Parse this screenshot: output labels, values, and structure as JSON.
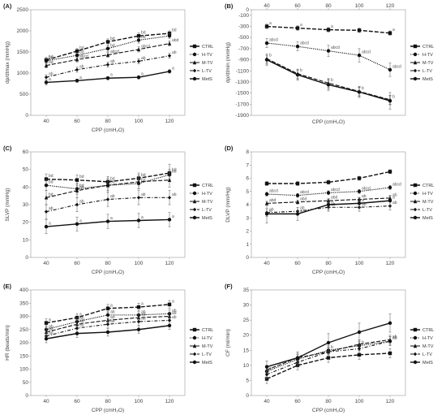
{
  "chart_data": [
    {
      "panel": "(A)",
      "type": "line",
      "ylabel": "dp/dtmax (mmHg)",
      "xlabel": "CPP (cmH₂O)",
      "x": [
        40,
        60,
        80,
        100,
        120
      ],
      "ylim": [
        0,
        2500
      ],
      "yticks": [
        0,
        500,
        1000,
        1500,
        2000,
        2500
      ],
      "series": [
        {
          "name": "CTRL",
          "values": [
            1310,
            1520,
            1740,
            1880,
            1940
          ],
          "err": [
            60,
            60,
            70,
            70,
            60
          ],
          "labels": [
            "bd",
            "bd",
            "bd",
            "bd",
            "bd"
          ]
        },
        {
          "name": "H-TV",
          "values": [
            1290,
            1420,
            1580,
            1780,
            1880
          ],
          "err": [
            60,
            60,
            70,
            70,
            60
          ],
          "labels": [
            "bd",
            "bd",
            "bd",
            "bd",
            ""
          ]
        },
        {
          "name": "M-TV",
          "values": [
            1180,
            1320,
            1430,
            1560,
            1700
          ],
          "err": [
            60,
            60,
            60,
            60,
            60
          ],
          "labels": [
            "bd",
            "abcd",
            "abcd",
            "abcd",
            "abd"
          ]
        },
        {
          "name": "L-TV",
          "values": [
            900,
            1080,
            1200,
            1280,
            1410
          ],
          "err": [
            60,
            60,
            60,
            60,
            60
          ],
          "labels": [
            "ab",
            "ab",
            "ab",
            "ab",
            "ab"
          ]
        },
        {
          "name": "MetS",
          "values": [
            780,
            820,
            880,
            900,
            1040
          ],
          "err": [
            60,
            40,
            40,
            40,
            40
          ],
          "labels": [
            "a",
            "a",
            "a",
            "a",
            "a"
          ]
        }
      ],
      "legend": {
        "entries": [
          "CTRL",
          "H-TV",
          "M-TV",
          "L-TV",
          "MetS"
        ],
        "placement": "right"
      }
    },
    {
      "panel": "(B)",
      "type": "line",
      "ylabel": "dp/dtmin (mmHg)",
      "xlabel": "CPP (cmH₂O)",
      "x": [
        40,
        60,
        80,
        100,
        120
      ],
      "ylim": [
        -1900,
        0
      ],
      "yticks": [
        0,
        -100,
        -300,
        -500,
        -700,
        -900,
        -1100,
        -1300,
        -1500,
        -1700,
        -1900
      ],
      "series": [
        {
          "name": "CTRL",
          "values": [
            -300,
            -330,
            -360,
            -370,
            -420
          ],
          "err": [
            40,
            40,
            40,
            40,
            40
          ],
          "labels": [
            "a",
            "a",
            "a",
            "",
            "a"
          ]
        },
        {
          "name": "H-TV",
          "values": [
            -600,
            -660,
            -740,
            -820,
            -1080
          ],
          "err": [
            80,
            80,
            100,
            120,
            120
          ],
          "labels": [
            "abcd",
            "abcd",
            "abcd",
            "abcd",
            "abcd"
          ]
        },
        {
          "name": "M-TV",
          "values": [
            -880,
            -1150,
            -1320,
            -1470,
            -1620
          ],
          "err": [
            80,
            80,
            80,
            80,
            80
          ],
          "labels": [
            "b",
            "b",
            "b",
            "b",
            "b"
          ]
        },
        {
          "name": "L-TV",
          "values": [
            -900,
            -1170,
            -1350,
            -1480,
            -1630
          ],
          "err": [
            80,
            80,
            80,
            80,
            80
          ],
          "labels": [
            "",
            "",
            "",
            "",
            ""
          ]
        },
        {
          "name": "MetS",
          "values": [
            -900,
            -1170,
            -1350,
            -1480,
            -1640
          ],
          "err": [
            100,
            100,
            100,
            100,
            150
          ],
          "labels": [
            "",
            "",
            "",
            "",
            ""
          ]
        }
      ],
      "legend": {
        "entries": [
          "CTRL",
          "H-TV",
          "M-TV",
          "L-TV",
          "MetS"
        ],
        "placement": "right"
      }
    },
    {
      "panel": "(C)",
      "type": "line",
      "ylabel": "SLVP (mmHg)",
      "xlabel": "CPP (cmH₂O)",
      "x": [
        40,
        60,
        80,
        100,
        120
      ],
      "ylim": [
        0,
        60
      ],
      "yticks": [
        0,
        10,
        20,
        30,
        40,
        50,
        60
      ],
      "series": [
        {
          "name": "CTRL",
          "values": [
            44.5,
            44,
            43,
            45,
            48
          ],
          "err": [
            3,
            3,
            3,
            3,
            5
          ],
          "labels": [
            "bd",
            "bd",
            "bd",
            "bd",
            "bd"
          ]
        },
        {
          "name": "H-TV",
          "values": [
            41,
            39,
            41,
            42,
            47
          ],
          "err": [
            3,
            3,
            3,
            3,
            3
          ],
          "labels": [
            "bd",
            "bd",
            "bd",
            "bd",
            "bd"
          ]
        },
        {
          "name": "M-TV",
          "values": [
            34,
            38,
            41,
            43,
            44
          ],
          "err": [
            4,
            4,
            4,
            4,
            4
          ],
          "labels": [
            "bd",
            "bd",
            "",
            "",
            ""
          ]
        },
        {
          "name": "L-TV",
          "values": [
            26,
            30,
            33,
            34,
            34
          ],
          "err": [
            4,
            4,
            4,
            4,
            4
          ],
          "labels": [
            "ab",
            "ab",
            "ab",
            "ab",
            "ab"
          ]
        },
        {
          "name": "MetS",
          "values": [
            17.5,
            19,
            20.5,
            21,
            21.5
          ],
          "err": [
            4,
            4,
            4,
            4,
            4
          ],
          "labels": [
            "a",
            "a",
            "a",
            "a",
            "a"
          ]
        }
      ],
      "legend": {
        "entries": [
          "CTRL",
          "H-TV",
          "M-TV",
          "L-TV",
          "MetS"
        ],
        "placement": "right"
      }
    },
    {
      "panel": "(D)",
      "type": "line",
      "ylabel": "DLVP (mm/Hg)",
      "xlabel": "CPP (cmH₂O)",
      "x": [
        40,
        60,
        80,
        100,
        120
      ],
      "ylim": [
        0,
        8
      ],
      "yticks": [
        0,
        1,
        2,
        3,
        4,
        5,
        6,
        7,
        8
      ],
      "series": [
        {
          "name": "CTRL",
          "values": [
            5.6,
            5.6,
            5.7,
            6.0,
            6.5
          ],
          "err": [
            0.15,
            0.15,
            0.15,
            0.15,
            0.15
          ],
          "labels": [
            "",
            "",
            "",
            "",
            ""
          ]
        },
        {
          "name": "H-TV",
          "values": [
            4.8,
            4.7,
            4.9,
            5.0,
            5.3
          ],
          "err": [
            0.15,
            0.15,
            0.15,
            0.15,
            0.15
          ],
          "labels": [
            "abcd",
            "abcd",
            "abcd",
            "abcd",
            "abcd"
          ]
        },
        {
          "name": "M-TV",
          "values": [
            4.1,
            4.2,
            4.3,
            4.4,
            4.5
          ],
          "err": [
            0.15,
            0.15,
            0.15,
            0.15,
            0.15
          ],
          "labels": [
            "abd",
            "abd",
            "abd",
            "ab",
            "ab"
          ]
        },
        {
          "name": "L-TV",
          "values": [
            3.4,
            3.5,
            3.8,
            3.8,
            3.9
          ],
          "err": [
            0.3,
            0.3,
            0.3,
            0.3,
            0.3
          ],
          "labels": [
            "ab",
            "ab",
            "ab",
            "ab",
            "ab"
          ]
        },
        {
          "name": "MetS",
          "values": [
            3.3,
            3.3,
            4.0,
            4.1,
            4.3
          ],
          "err": [
            0.7,
            0.5,
            0.4,
            0.4,
            0.4
          ],
          "labels": [
            "a",
            "a",
            "a",
            "a",
            "a"
          ]
        }
      ],
      "legend": {
        "entries": [
          "CTRL",
          "H-TV",
          "M-TV",
          "L-TV",
          "MetS"
        ],
        "placement": "right"
      }
    },
    {
      "panel": "(E)",
      "type": "line",
      "ylabel": "HR (beats/min)",
      "xlabel": "CPP (cmH₂O)",
      "x": [
        40,
        60,
        80,
        100,
        120
      ],
      "ylim": [
        0,
        400
      ],
      "yticks": [
        0,
        50,
        100,
        150,
        200,
        250,
        300,
        350,
        400
      ],
      "series": [
        {
          "name": "CTRL",
          "values": [
            275,
            295,
            330,
            335,
            345
          ],
          "err": [
            15,
            15,
            15,
            15,
            15
          ],
          "labels": [
            "a",
            "a",
            "a",
            "a",
            "a"
          ]
        },
        {
          "name": "H-TV",
          "values": [
            250,
            280,
            305,
            305,
            310
          ],
          "err": [
            15,
            15,
            15,
            15,
            15
          ],
          "labels": [
            "ab",
            "ab",
            "ab",
            "ab",
            "ab"
          ]
        },
        {
          "name": "M-TV",
          "values": [
            240,
            270,
            285,
            295,
            300
          ],
          "err": [
            15,
            15,
            15,
            15,
            15
          ],
          "labels": [
            "ad",
            "ad",
            "ad",
            "ad",
            "ad"
          ]
        },
        {
          "name": "L-TV",
          "values": [
            225,
            255,
            270,
            280,
            285
          ],
          "err": [
            15,
            15,
            15,
            15,
            15
          ],
          "labels": [
            "ad",
            "ab",
            "ab",
            "ab",
            "ab"
          ]
        },
        {
          "name": "MetS",
          "values": [
            215,
            235,
            240,
            250,
            265
          ],
          "err": [
            15,
            15,
            15,
            15,
            15
          ],
          "labels": [
            "",
            "",
            "",
            "",
            ""
          ]
        }
      ],
      "legend": {
        "entries": [
          "CTRL",
          "H-TV",
          "M-TV",
          "L-TV",
          "MetS"
        ],
        "placement": "right"
      }
    },
    {
      "panel": "(F)",
      "type": "line",
      "ylabel": "CF (ml/min)",
      "xlabel": "CPP (cmH₂O)",
      "x": [
        40,
        60,
        80,
        100,
        120
      ],
      "ylim": [
        0,
        35
      ],
      "yticks": [
        0,
        5,
        10,
        15,
        20,
        25,
        30,
        35
      ],
      "series": [
        {
          "name": "CTRL",
          "values": [
            5.5,
            10,
            12.5,
            13.5,
            14
          ],
          "err": [
            1.5,
            1.5,
            1.5,
            1.5,
            1.5
          ],
          "labels": [
            "",
            "",
            "",
            "",
            ""
          ]
        },
        {
          "name": "H-TV",
          "values": [
            8,
            12,
            15,
            16.5,
            18
          ],
          "err": [
            1.5,
            1.5,
            1.5,
            1.5,
            1.5
          ],
          "labels": [
            "a",
            "a",
            "b",
            "b",
            "ab"
          ]
        },
        {
          "name": "M-TV",
          "values": [
            8.5,
            12.5,
            14.5,
            17,
            18.5
          ],
          "err": [
            1.5,
            1.5,
            1.5,
            1.5,
            1.5
          ],
          "labels": [
            "",
            "",
            "",
            "",
            "ab"
          ]
        },
        {
          "name": "L-TV",
          "values": [
            7,
            11,
            14.5,
            15.5,
            18
          ],
          "err": [
            1.5,
            1.5,
            1.5,
            1.5,
            1.5
          ],
          "labels": [
            "",
            "",
            "",
            "",
            "ab"
          ]
        },
        {
          "name": "MetS",
          "values": [
            9.5,
            12.5,
            17.5,
            21,
            24
          ],
          "err": [
            2,
            2,
            3,
            3,
            3
          ],
          "labels": [
            "",
            "",
            "",
            "",
            ""
          ]
        }
      ],
      "legend": {
        "entries": [
          "CTRL",
          "H-TV",
          "M-TV",
          "L-TV",
          "MetS"
        ],
        "placement": "right"
      }
    }
  ]
}
